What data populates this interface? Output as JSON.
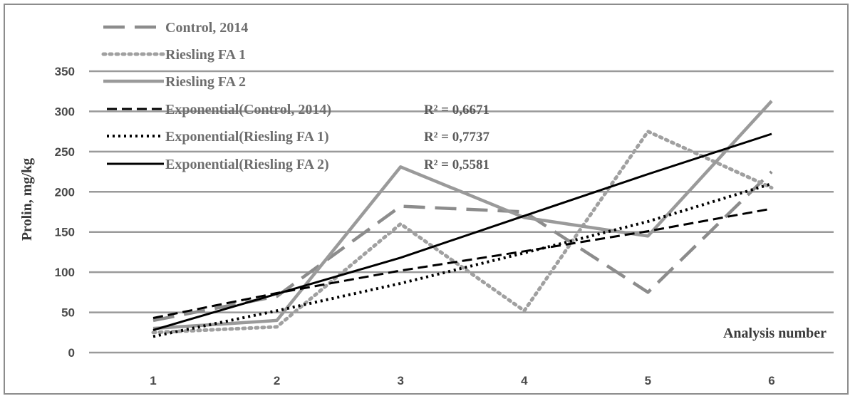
{
  "chart_data": {
    "type": "line",
    "xlabel": "Analysis number",
    "ylabel": "Prolin, mg/kg",
    "x": [
      1,
      2,
      3,
      4,
      5,
      6
    ],
    "ylim": [
      0,
      350
    ],
    "yticks": [
      0,
      50,
      100,
      150,
      200,
      250,
      300,
      350
    ],
    "grid": "horizontal",
    "legend_position": "top-left",
    "series": [
      {
        "name": "Control, 2014",
        "style": "long-dash",
        "color": "#8c8c8c",
        "values": [
          40,
          70,
          182,
          175,
          75,
          225
        ]
      },
      {
        "name": "Riesling FA 1",
        "style": "dotted",
        "color": "#a0a0a0",
        "values": [
          25,
          32,
          160,
          52,
          275,
          205
        ]
      },
      {
        "name": "Riesling FA 2",
        "style": "solid",
        "color": "#9a9a9a",
        "values": [
          30,
          40,
          231,
          168,
          145,
          313
        ]
      },
      {
        "name": "Exponential(Control, 2014)",
        "style": "dash",
        "color": "#000000",
        "trend": true,
        "r2": "R² = 0,6671",
        "values": [
          43,
          74,
          102,
          126,
          151,
          179
        ]
      },
      {
        "name": "Exponential(Riesling FA 1)",
        "style": "dot",
        "color": "#000000",
        "trend": true,
        "r2": "R² = 0,7737",
        "values": [
          20,
          52,
          86,
          124,
          163,
          210
        ]
      },
      {
        "name": "Exponential(Riesling FA 2)",
        "style": "solid",
        "color": "#000000",
        "trend": true,
        "r2": "R² = 0,5581",
        "values": [
          28,
          73,
          118,
          170,
          222,
          272
        ]
      }
    ]
  }
}
